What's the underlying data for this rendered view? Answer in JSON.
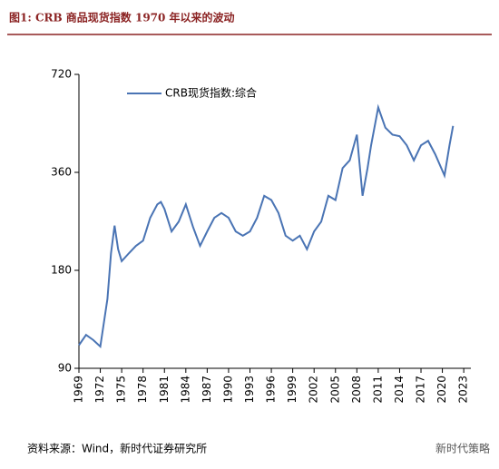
{
  "chart_data": {
    "type": "line",
    "title": "图1:   CRB 商品现货指数 1970 年以来的波动",
    "source": "资料来源：Wind，新时代证券研究所",
    "watermark": "新时代策略",
    "x": [
      1969,
      1970,
      1971,
      1972,
      1973,
      1973.5,
      1974,
      1974.5,
      1975,
      1976,
      1977,
      1978,
      1979,
      1980,
      1980.5,
      1981,
      1982,
      1983,
      1984,
      1985,
      1986,
      1987,
      1988,
      1989,
      1990,
      1991,
      1992,
      1993,
      1994,
      1995,
      1996,
      1997,
      1998,
      1999,
      2000,
      2001,
      2002,
      2003,
      2004,
      2005,
      2006,
      2007,
      2008,
      2008.8,
      2009.5,
      2010,
      2011,
      2012,
      2013,
      2014,
      2015,
      2016,
      2017,
      2018,
      2019,
      2020.3,
      2021,
      2021.5
    ],
    "series": [
      {
        "name": "CRB现货指数:综合",
        "color": "#4a74b4",
        "values": [
          106,
          114,
          110,
          105,
          147,
          203,
          247,
          209,
          192,
          203,
          214,
          222,
          261,
          287,
          292,
          278,
          237,
          254,
          287,
          245,
          214,
          237,
          261,
          270,
          261,
          237,
          230,
          237,
          261,
          305,
          296,
          270,
          230,
          222,
          230,
          209,
          237,
          254,
          305,
          296,
          371,
          392,
          470,
          305,
          371,
          436,
          570,
          494,
          470,
          465,
          436,
          392,
          436,
          450,
          409,
          352,
          436,
          500
        ]
      }
    ],
    "xlim": [
      1969,
      2024
    ],
    "xticks": [
      1969,
      1972,
      1975,
      1978,
      1981,
      1984,
      1987,
      1990,
      1993,
      1996,
      1999,
      2002,
      2005,
      2008,
      2011,
      2014,
      2017,
      2020,
      2023
    ],
    "ylim": [
      90,
      720
    ],
    "yticks": [
      90,
      180,
      360,
      720
    ],
    "log_y": true,
    "legend": "upper left"
  }
}
